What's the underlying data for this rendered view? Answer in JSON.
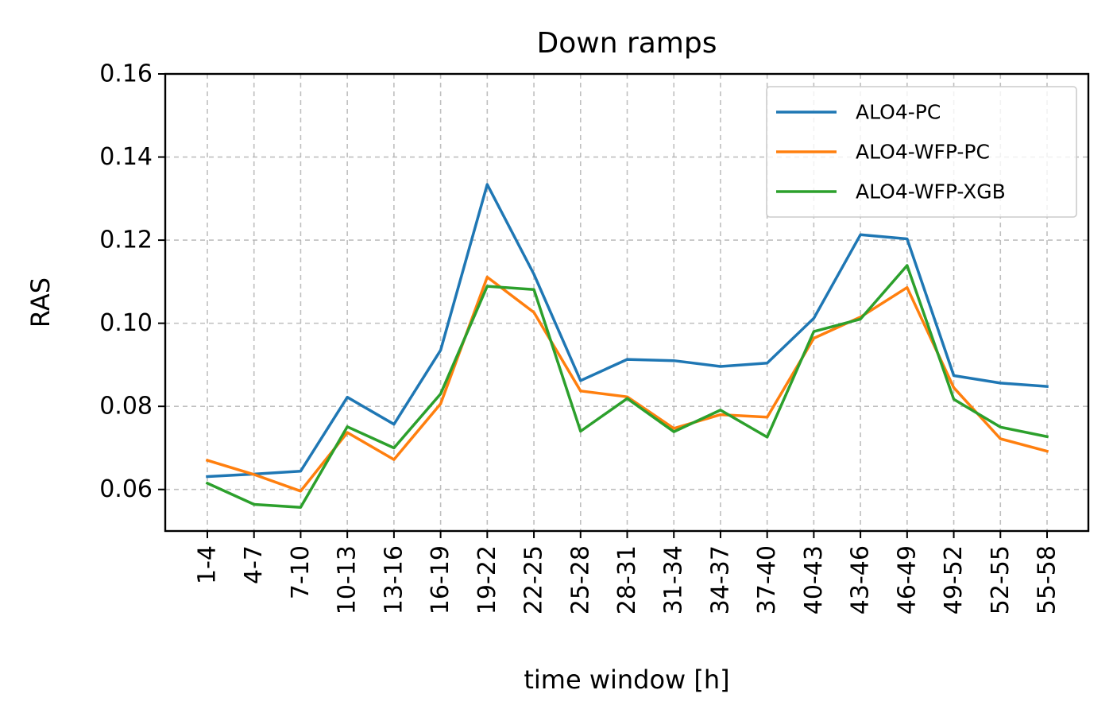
{
  "chart_data": {
    "type": "line",
    "title": "Down ramps",
    "xlabel": "time window [h]",
    "ylabel": "RAS",
    "categories": [
      "1-4",
      "4-7",
      "7-10",
      "10-13",
      "13-16",
      "16-19",
      "19-22",
      "22-25",
      "25-28",
      "28-31",
      "31-34",
      "34-37",
      "37-40",
      "40-43",
      "43-46",
      "46-49",
      "49-52",
      "52-55",
      "55-58"
    ],
    "ylim": [
      0.05,
      0.16
    ],
    "yticks": [
      "0.06",
      "0.08",
      "0.10",
      "0.12",
      "0.14",
      "0.16"
    ],
    "grid": true,
    "legend_position": "top-right",
    "series": [
      {
        "name": "ALO4-PC",
        "color": "#1f77b4",
        "values": [
          0.0631,
          0.0637,
          0.0644,
          0.0822,
          0.0757,
          0.0935,
          0.1334,
          0.1118,
          0.0862,
          0.0913,
          0.091,
          0.0896,
          0.0904,
          0.1012,
          0.1213,
          0.1203,
          0.0874,
          0.0856,
          0.0848
        ]
      },
      {
        "name": "ALO4-WFP-PC",
        "color": "#ff7f0e",
        "values": [
          0.067,
          0.0636,
          0.0596,
          0.0737,
          0.0672,
          0.0806,
          0.1111,
          0.1026,
          0.0837,
          0.0823,
          0.0747,
          0.078,
          0.0774,
          0.0964,
          0.1015,
          0.1086,
          0.0845,
          0.0722,
          0.0692
        ]
      },
      {
        "name": "ALO4-WFP-XGB",
        "color": "#2ca02c",
        "values": [
          0.0615,
          0.0564,
          0.0557,
          0.0751,
          0.07,
          0.083,
          0.1089,
          0.1081,
          0.074,
          0.0819,
          0.0739,
          0.0791,
          0.0726,
          0.098,
          0.101,
          0.1139,
          0.0817,
          0.075,
          0.0727
        ]
      }
    ]
  }
}
